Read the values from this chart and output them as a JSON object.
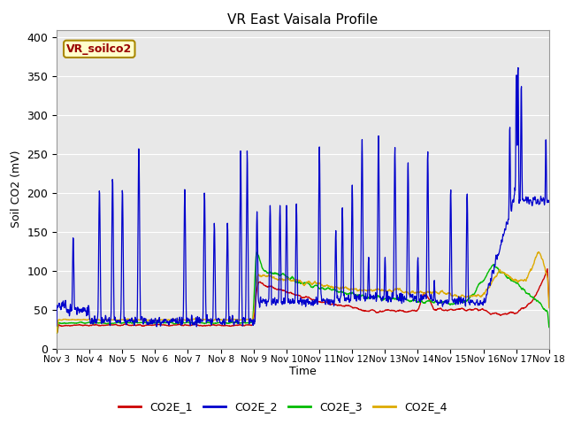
{
  "title": "VR East Vaisala Profile",
  "ylabel": "Soil CO2 (mV)",
  "xlabel": "Time",
  "annotation": "VR_soilco2",
  "ylim": [
    0,
    410
  ],
  "yticks": [
    0,
    50,
    100,
    150,
    200,
    250,
    300,
    350,
    400
  ],
  "xtick_labels": [
    "Nov 3",
    "Nov 4",
    "Nov 5",
    "Nov 6",
    "Nov 7",
    "Nov 8",
    "Nov 9",
    "Nov 10",
    "Nov 11",
    "Nov 12",
    "Nov 13",
    "Nov 14",
    "Nov 15",
    "Nov 16",
    "Nov 17",
    "Nov 18"
  ],
  "colors": {
    "CO2E_1": "#cc0000",
    "CO2E_2": "#0000cc",
    "CO2E_3": "#00bb00",
    "CO2E_4": "#ddaa00"
  },
  "bg_color": "#e8e8e8",
  "annotation_box_color": "#ffffcc",
  "annotation_text_color": "#990000",
  "annotation_box_edge": "#aa8800"
}
